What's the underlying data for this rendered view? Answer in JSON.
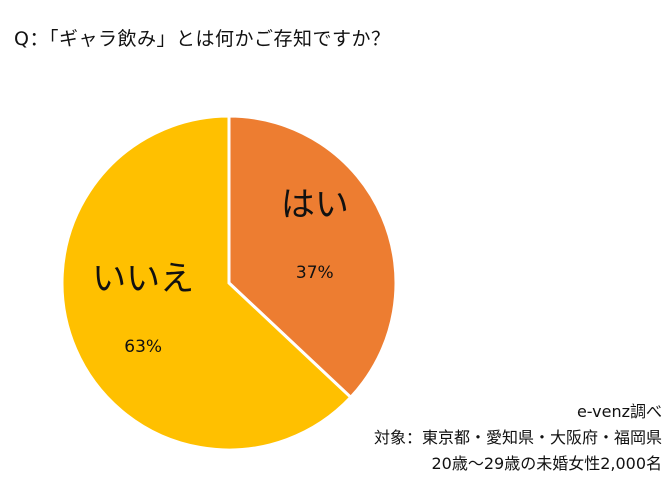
{
  "question": "Q：「ギャラ飲み」とは何かご存知ですか？",
  "chart_data": {
    "type": "pie",
    "title": "",
    "categories": [
      "はい",
      "いいえ"
    ],
    "values": [
      37,
      63
    ],
    "value_labels": [
      "37%",
      "63%"
    ],
    "colors": [
      "#ED7D31",
      "#FFC000"
    ]
  },
  "notes": {
    "source": "e-venz調べ",
    "target": "対象：東京都・愛知県・大阪府・福岡県",
    "sample": "20歳〜29歳の未婚女性2,000名"
  }
}
